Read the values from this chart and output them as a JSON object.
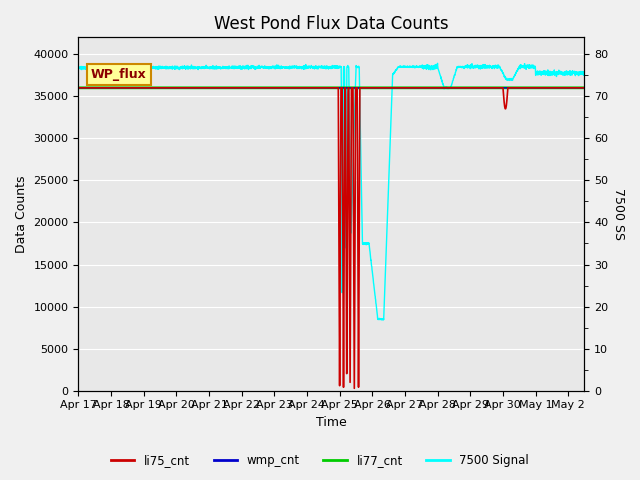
{
  "title": "West Pond Flux Data Counts",
  "xlabel": "Time",
  "ylabel_left": "Data Counts",
  "ylabel_right": "7500 SS",
  "ylim_left": [
    0,
    42000
  ],
  "ylim_right": [
    0,
    84
  ],
  "fig_bg_color": "#f0f0f0",
  "plot_bg_color": "#e8e8e8",
  "grid_color": "#ffffff",
  "annotation_text": "WP_flux",
  "li77_cnt_value": 36000,
  "li75_cnt_base": 36000,
  "wmp_cnt_value": 36000,
  "legend_labels": [
    "li75_cnt",
    "wmp_cnt",
    "li77_cnt",
    "7500 Signal"
  ],
  "legend_colors": [
    "#cc0000",
    "#0000cc",
    "#00cc00",
    "#00cccc"
  ],
  "tick_label_fontsize": 8,
  "title_fontsize": 12,
  "axis_label_fontsize": 9
}
